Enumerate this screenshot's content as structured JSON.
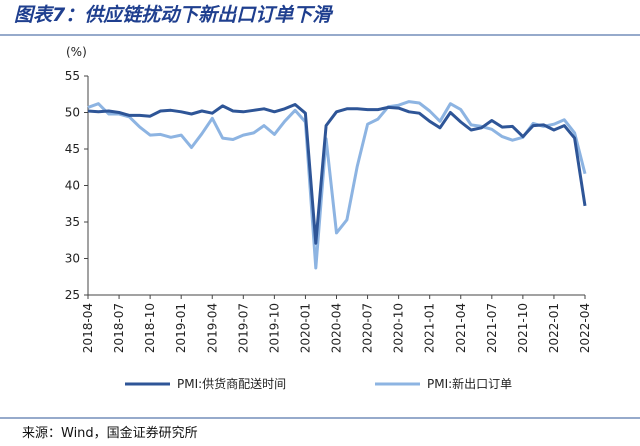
{
  "chart_data": {
    "type": "line",
    "title": "图表7：供应链扰动下新出口订单下滑",
    "y_label": "(%)",
    "source": "来源：Wind，国金证券研究所",
    "categories": [
      "2018-04",
      null,
      null,
      "2018-07",
      null,
      null,
      "2018-10",
      null,
      null,
      "2019-01",
      null,
      null,
      "2019-04",
      null,
      null,
      "2019-07",
      null,
      null,
      "2019-10",
      null,
      null,
      "2020-01",
      null,
      null,
      "2020-04",
      null,
      null,
      "2020-07",
      null,
      null,
      "2020-10",
      null,
      null,
      "2021-01",
      null,
      null,
      "2021-04",
      null,
      null,
      "2021-07",
      null,
      null,
      "2021-10",
      null,
      null,
      "2022-01",
      null,
      null,
      "2022-04"
    ],
    "series": [
      {
        "name": "PMI:供货商配送时间",
        "color": "#2e5597",
        "values": [
          50.2,
          50.1,
          50.2,
          50.0,
          49.6,
          49.6,
          49.5,
          50.2,
          50.3,
          50.1,
          49.8,
          50.2,
          49.9,
          50.9,
          50.2,
          50.1,
          50.3,
          50.5,
          50.1,
          50.5,
          51.1,
          49.9,
          32.1,
          48.2,
          50.1,
          50.5,
          50.5,
          50.4,
          50.4,
          50.7,
          50.6,
          50.1,
          49.9,
          48.8,
          47.9,
          50.0,
          48.7,
          47.6,
          47.9,
          48.9,
          48.0,
          48.1,
          46.7,
          48.2,
          48.3,
          47.6,
          48.2,
          46.5,
          37.2
        ]
      },
      {
        "name": "PMI:新出口订单",
        "color": "#8db4e2",
        "values": [
          50.7,
          51.2,
          49.8,
          49.8,
          49.4,
          48.0,
          46.9,
          47.0,
          46.6,
          46.9,
          45.2,
          47.1,
          49.2,
          46.5,
          46.3,
          46.9,
          47.2,
          48.2,
          47.0,
          48.8,
          50.3,
          48.7,
          28.7,
          46.4,
          33.5,
          35.3,
          42.6,
          48.4,
          49.1,
          50.8,
          51.0,
          51.5,
          51.3,
          50.2,
          48.8,
          51.2,
          50.4,
          48.3,
          48.1,
          47.7,
          46.7,
          46.2,
          46.6,
          48.5,
          48.1,
          48.4,
          49.0,
          47.2,
          41.6
        ]
      }
    ],
    "ylim": [
      25,
      55
    ],
    "yticks": [
      25,
      30,
      35,
      40,
      45,
      50,
      55
    ]
  }
}
